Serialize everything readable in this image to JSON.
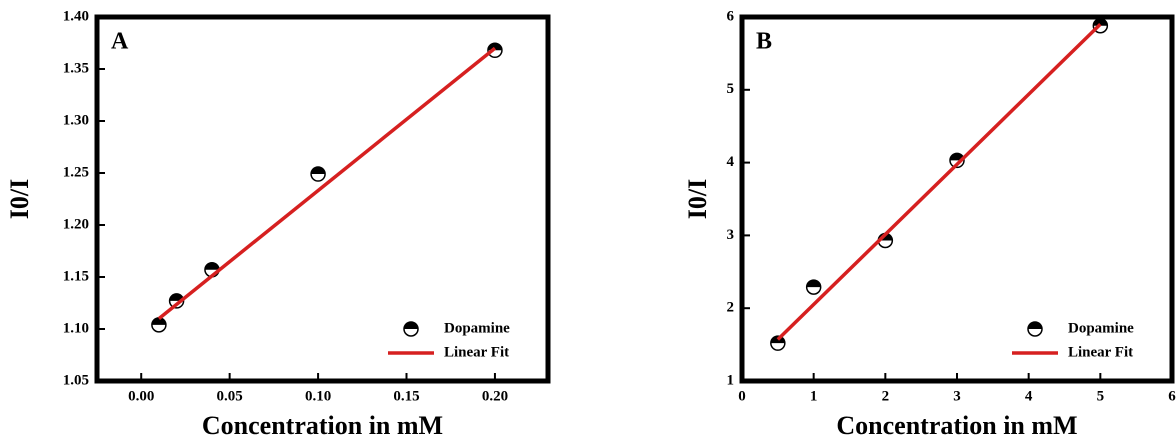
{
  "chart_data": [
    {
      "type": "scatter",
      "panel": "A",
      "xlabel": "Concentration in mM",
      "ylabel": "I0/I",
      "xlim": [
        -0.025,
        0.23
      ],
      "ylim": [
        1.05,
        1.4
      ],
      "xticks": [
        {
          "value": 0,
          "label": "0.00"
        },
        0.05,
        {
          "value": 0.1,
          "label": "0.10"
        },
        0.15,
        {
          "value": 0.2,
          "label": "0.20"
        }
      ],
      "yticks": [
        1.05,
        {
          "value": 1.1,
          "label": "1.10"
        },
        1.15,
        {
          "value": 1.2,
          "label": "1.20"
        },
        1.25,
        {
          "value": 1.3,
          "label": "1.30"
        },
        1.35,
        {
          "value": 1.4,
          "label": "1.40"
        }
      ],
      "legend": "lower right",
      "series": [
        {
          "name": "Dopamine",
          "kind": "marker",
          "color": "#000000",
          "x": [
            0.01,
            0.02,
            0.04,
            0.1,
            0.2
          ],
          "values": [
            1.104,
            1.127,
            1.157,
            1.249,
            1.368
          ]
        },
        {
          "name": "Linear Fit",
          "kind": "line",
          "color": "#d62020",
          "x": [
            0.01,
            0.2
          ],
          "values": [
            1.11,
            1.37
          ]
        }
      ]
    },
    {
      "type": "scatter",
      "panel": "B",
      "xlabel": "Concentration in mM",
      "ylabel": "I0/I",
      "xlim": [
        0,
        6
      ],
      "ylim": [
        1,
        6
      ],
      "xticks": [
        0,
        1,
        2,
        3,
        4,
        5,
        6
      ],
      "yticks": [
        1,
        2,
        3,
        4,
        5,
        6
      ],
      "legend": "lower right",
      "series": [
        {
          "name": "Dopamine",
          "kind": "marker",
          "color": "#000000",
          "x": [
            0.5,
            1,
            2,
            3,
            5
          ],
          "values": [
            1.52,
            2.29,
            2.93,
            4.03,
            5.88
          ]
        },
        {
          "name": "Linear Fit",
          "kind": "line",
          "color": "#d62020",
          "x": [
            0.5,
            5
          ],
          "values": [
            1.57,
            5.9
          ]
        }
      ]
    }
  ]
}
